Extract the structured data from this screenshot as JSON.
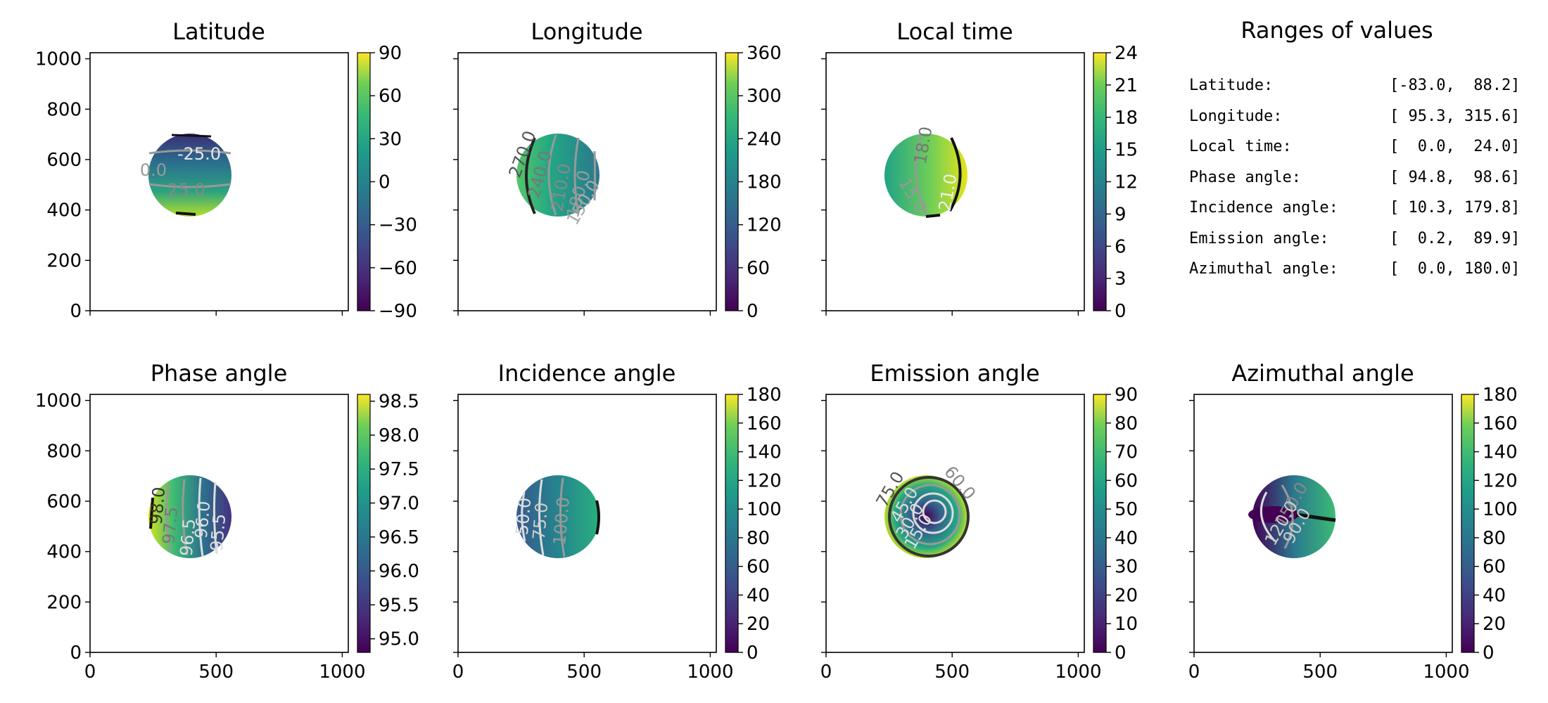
{
  "figure": {
    "ranges_title": "Ranges of values",
    "ranges": [
      {
        "label": "Latitude:",
        "value": "[-83.0,  88.2]"
      },
      {
        "label": "Longitude:",
        "value": "[ 95.3, 315.6]"
      },
      {
        "label": "Local time:",
        "value": "[  0.0,  24.0]"
      },
      {
        "label": "Phase angle:",
        "value": "[ 94.8,  98.6]"
      },
      {
        "label": "Incidence angle:",
        "value": "[ 10.3, 179.8]"
      },
      {
        "label": "Emission angle:",
        "value": "[  0.2,  89.9]"
      },
      {
        "label": "Azimuthal angle:",
        "value": "[  0.0, 180.0]"
      }
    ]
  },
  "chart_data": [
    {
      "type": "heatmap",
      "title": "Latitude",
      "x_ticks": [],
      "y_ticks": [
        "0",
        "200",
        "400",
        "600",
        "800",
        "1000"
      ],
      "xlim": [
        0,
        1024
      ],
      "ylim": [
        0,
        1024
      ],
      "colorbar": {
        "range": [
          -90,
          90
        ],
        "ticks": [
          "90",
          "60",
          "30",
          "0",
          "−30",
          "−60",
          "−90"
        ]
      },
      "contour_labels": [
        "-25.0",
        "0.0",
        "25.0"
      ]
    },
    {
      "type": "heatmap",
      "title": "Longitude",
      "x_ticks": [],
      "y_ticks": [],
      "xlim": [
        0,
        1024
      ],
      "ylim": [
        0,
        1024
      ],
      "colorbar": {
        "range": [
          0,
          360
        ],
        "ticks": [
          "360",
          "300",
          "240",
          "180",
          "120",
          "60",
          "0"
        ]
      },
      "contour_labels": [
        "270.0",
        "240.0",
        "210.0",
        "180.0",
        "150.0"
      ]
    },
    {
      "type": "heatmap",
      "title": "Local time",
      "x_ticks": [],
      "y_ticks": [],
      "xlim": [
        0,
        1024
      ],
      "ylim": [
        0,
        1024
      ],
      "colorbar": {
        "range": [
          0,
          24
        ],
        "ticks": [
          "24",
          "21",
          "18",
          "15",
          "12",
          "9",
          "6",
          "3",
          "0"
        ]
      },
      "contour_labels": [
        "18.0",
        "15.0",
        "21.0"
      ]
    },
    {
      "type": "heatmap",
      "title": "Phase angle",
      "x_ticks": [
        "0",
        "500",
        "1000"
      ],
      "y_ticks": [
        "0",
        "200",
        "400",
        "600",
        "800",
        "1000"
      ],
      "xlim": [
        0,
        1024
      ],
      "ylim": [
        0,
        1024
      ],
      "colorbar": {
        "range": [
          94.8,
          98.6
        ],
        "ticks": [
          "98.5",
          "98.0",
          "97.5",
          "97.0",
          "96.5",
          "96.0",
          "95.5",
          "95.0"
        ]
      },
      "contour_labels": [
        "98.0",
        "97.5",
        "96.5",
        "96.0",
        "95.5"
      ]
    },
    {
      "type": "heatmap",
      "title": "Incidence angle",
      "x_ticks": [
        "0",
        "500",
        "1000"
      ],
      "y_ticks": [],
      "xlim": [
        0,
        1024
      ],
      "ylim": [
        0,
        1024
      ],
      "colorbar": {
        "range": [
          0,
          180
        ],
        "ticks": [
          "180",
          "160",
          "140",
          "120",
          "100",
          "80",
          "60",
          "40",
          "20",
          "0"
        ]
      },
      "contour_labels": [
        "50.0",
        "75.0",
        "100.0"
      ]
    },
    {
      "type": "heatmap",
      "title": "Emission angle",
      "x_ticks": [
        "0",
        "500",
        "1000"
      ],
      "y_ticks": [],
      "xlim": [
        0,
        1024
      ],
      "ylim": [
        0,
        1024
      ],
      "colorbar": {
        "range": [
          0,
          90
        ],
        "ticks": [
          "90",
          "80",
          "70",
          "60",
          "50",
          "40",
          "30",
          "20",
          "10",
          "0"
        ]
      },
      "contour_labels": [
        "75.0",
        "60.0",
        "45.0",
        "30.0",
        "15.0"
      ]
    },
    {
      "type": "heatmap",
      "title": "Azimuthal angle",
      "x_ticks": [
        "0",
        "500",
        "1000"
      ],
      "y_ticks": [],
      "xlim": [
        0,
        1024
      ],
      "ylim": [
        0,
        1024
      ],
      "colorbar": {
        "range": [
          0,
          180
        ],
        "ticks": [
          "180",
          "160",
          "140",
          "120",
          "100",
          "80",
          "60",
          "40",
          "20",
          "0"
        ]
      },
      "contour_labels": [
        "150.0",
        "120.0",
        "90.0"
      ]
    }
  ]
}
